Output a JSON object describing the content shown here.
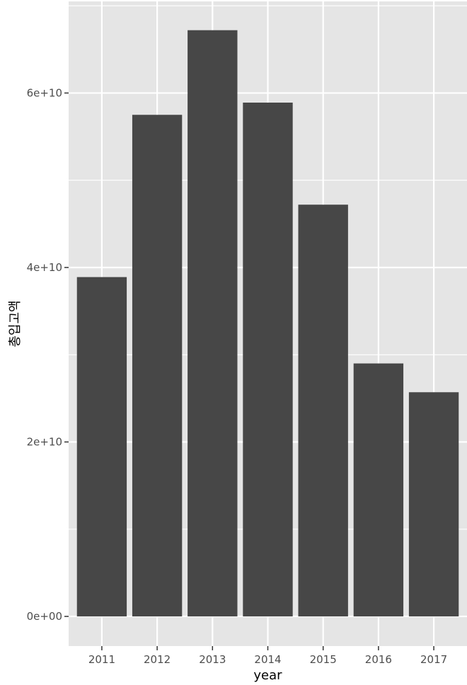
{
  "chart_data": {
    "type": "bar",
    "title": "",
    "xlabel": "year",
    "ylabel": "총입고액",
    "categories": [
      "2011",
      "2012",
      "2013",
      "2014",
      "2015",
      "2016",
      "2017"
    ],
    "values": [
      38900000000,
      57500000000,
      67200000000,
      58900000000,
      47200000000,
      29000000000,
      25700000000
    ],
    "ylim": [
      -3400000000,
      70500000000
    ],
    "y_ticks": [
      0,
      20000000000,
      40000000000,
      60000000000
    ],
    "y_tick_labels": [
      "0e+00",
      "2e+10",
      "4e+10",
      "6e+10"
    ],
    "grid": true,
    "legend": "none",
    "colors": {
      "panel_background": "#e5e5e5",
      "grid_major": "#ffffff",
      "bar_fill": "#474747",
      "tick_text": "#4d4d4d",
      "tick_mark": "#333333"
    }
  }
}
